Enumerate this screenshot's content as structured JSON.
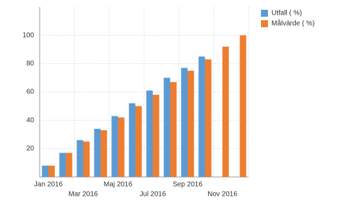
{
  "chart_data": {
    "type": "bar",
    "categories": [
      "Jan 2016",
      null,
      "Mar 2016",
      null,
      "Maj 2016",
      null,
      "Jul 2016",
      null,
      "Sep 2016",
      null,
      "Nov 2016",
      null
    ],
    "series": [
      {
        "name": "Utfall ( %)",
        "color": "#5b9bd5",
        "values": [
          8,
          17,
          26,
          34,
          43,
          52,
          61,
          70,
          77,
          85,
          null,
          null
        ]
      },
      {
        "name": "Målvärde ( %)",
        "color": "#ed7d31",
        "values": [
          8,
          17,
          25,
          33,
          42,
          50,
          58,
          67,
          75,
          83,
          92,
          100
        ]
      }
    ],
    "ylim": [
      0,
      120
    ],
    "yticks": [
      20,
      40,
      60,
      80,
      100
    ],
    "grid": true
  }
}
